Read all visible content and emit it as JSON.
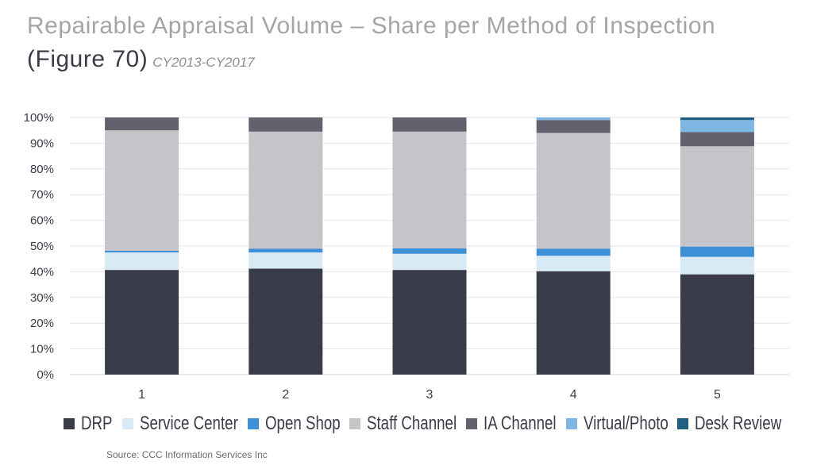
{
  "title": {
    "line1": "Repairable Appraisal Volume – Share per Method of Inspection",
    "figure": "(Figure 70)",
    "subtitle": "CY2013-CY2017"
  },
  "source": "Source:  CCC Information Services Inc",
  "chart_data": {
    "type": "bar",
    "stacked": true,
    "categories": [
      "1",
      "2",
      "3",
      "4",
      "5"
    ],
    "ylim": [
      0,
      100
    ],
    "yticks": [
      "0%",
      "10%",
      "20%",
      "30%",
      "40%",
      "50%",
      "60%",
      "70%",
      "80%",
      "90%",
      "100%"
    ],
    "grid": true,
    "legend_position": "bottom",
    "series": [
      {
        "name": "DRP",
        "color": "#3a3d49",
        "values": [
          40.7,
          41.2,
          40.7,
          40.2,
          39.0
        ]
      },
      {
        "name": "Service Center",
        "color": "#d9eaf7",
        "values": [
          6.8,
          6.3,
          6.3,
          6.0,
          6.8
        ]
      },
      {
        "name": "Open Shop",
        "color": "#3d8fd6",
        "values": [
          0.7,
          1.5,
          2.1,
          2.8,
          4.0
        ]
      },
      {
        "name": "Staff Channel",
        "color": "#c7c4c9",
        "values": [
          46.8,
          45.5,
          45.4,
          45.0,
          39.0
        ]
      },
      {
        "name": "IA Channel",
        "color": "#62616d",
        "values": [
          5.0,
          5.5,
          5.5,
          5.0,
          5.5
        ]
      },
      {
        "name": "Virtual/Photo",
        "color": "#7fb6e2",
        "values": [
          0.0,
          0.0,
          0.0,
          1.0,
          4.7
        ]
      },
      {
        "name": "Desk Review",
        "color": "#1f5f7f",
        "values": [
          0.0,
          0.0,
          0.0,
          0.0,
          1.0
        ]
      }
    ]
  }
}
